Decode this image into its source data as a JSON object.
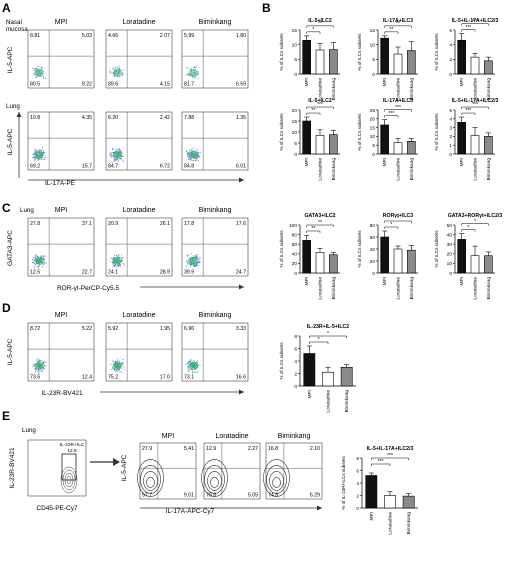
{
  "panels": {
    "A": {
      "letter": "A",
      "conditions": [
        "MPI",
        "Loratadine",
        "Biminkang"
      ],
      "tissues": [
        "Nasal\nmucosa",
        "Lung"
      ],
      "ylabel": "IL-5-APC",
      "xlabel": "IL-17A-PE",
      "quadrants": [
        [
          [
            "8.81",
            "5.03",
            "80.5",
            "9.22"
          ],
          [
            "4.66",
            "2.07",
            "89.6",
            "4.15"
          ],
          [
            "5.99",
            "1.80",
            "81.7",
            "6.59"
          ]
        ],
        [
          [
            "10.8",
            "4.35",
            "69.2",
            "15.7"
          ],
          [
            "6.20",
            "2.42",
            "84.7",
            "6.72"
          ],
          [
            "7.88",
            "1.35",
            "84.8",
            "6.01"
          ]
        ]
      ]
    },
    "B": {
      "letter": "B"
    },
    "C": {
      "letter": "C",
      "tissue": "Lung",
      "conditions": [
        "MPI",
        "Loratadine",
        "Biminkang"
      ],
      "ylabel": "GATA3-APC",
      "xlabel": "ROR-γt-PerCP-Cy5.5",
      "quadrants": [
        [
          "27.8",
          "37.1",
          "12.5",
          "22.7"
        ],
        [
          "20.9",
          "26.1",
          "24.1",
          "28.9"
        ],
        [
          "17.8",
          "17.6",
          "39.9",
          "24.7"
        ]
      ]
    },
    "D": {
      "letter": "D",
      "conditions": [
        "MPI",
        "Loratadine",
        "Biminkang"
      ],
      "ylabel": "IL-5-APC",
      "xlabel": "IL-23R-BV421",
      "quadrants": [
        [
          "8.72",
          "5.22",
          "73.6",
          "12.4"
        ],
        [
          "5.92",
          "1.95",
          "75.2",
          "17.0"
        ],
        [
          "6.96",
          "3.33",
          "73.1",
          "16.6"
        ]
      ]
    },
    "E": {
      "letter": "E",
      "tissue": "Lung",
      "gate_label": "IL-23R+ILC",
      "gate_value": "12.8",
      "gate_ylabel": "IL-23R-BV421",
      "gate_xlabel": "CD45-PE-Cy7",
      "conditions": [
        "MPI",
        "Loratadine",
        "Biminkang"
      ],
      "ylabel": "IL-5-APC",
      "xlabel": "IL-17A-APC-Cy7",
      "quadrants": [
        [
          "27.9",
          "5.41",
          "57.7",
          "9.01"
        ],
        [
          "12.9",
          "2.27",
          "79.8",
          "5.05"
        ],
        [
          "16.8",
          "2.10",
          "74.8",
          "6.29"
        ]
      ]
    }
  },
  "chart_data": [
    {
      "type": "bar",
      "panel": "B",
      "title": "IL-5+ILC2",
      "ylabel": "% of ILCs subsets",
      "categories": [
        "MPI",
        "Loratadine",
        "Biminkang"
      ],
      "values": [
        11.5,
        8.2,
        8.3
      ],
      "errors": [
        1.5,
        2.2,
        2.4
      ],
      "ylim": [
        0,
        15
      ],
      "ticks": [
        0,
        5,
        10,
        15
      ],
      "brackets": [
        {
          "from": 0,
          "to": 2,
          "label": "**"
        },
        {
          "from": 0,
          "to": 1,
          "label": "*"
        }
      ]
    },
    {
      "type": "bar",
      "panel": "B",
      "title": "IL-17A+ILC3",
      "ylabel": "% of ILCs subsets",
      "categories": [
        "MPI",
        "Loratadine",
        "Biminkang"
      ],
      "values": [
        12.2,
        6.8,
        8.0
      ],
      "errors": [
        0.8,
        2.4,
        3.0
      ],
      "ylim": [
        0,
        15
      ],
      "ticks": [
        0,
        5,
        10,
        15
      ],
      "brackets": [
        {
          "from": 0,
          "to": 2,
          "label": "**"
        },
        {
          "from": 0,
          "to": 1,
          "label": "**"
        }
      ]
    },
    {
      "type": "bar",
      "panel": "B",
      "title": "IL-5+IL-17A+ILC2/3",
      "ylabel": "% of ILCs subsets",
      "categories": [
        "MPI",
        "Loratadine",
        "Biminkang"
      ],
      "values": [
        4.6,
        2.3,
        1.8
      ],
      "errors": [
        0.9,
        0.5,
        0.5
      ],
      "ylim": [
        0,
        6
      ],
      "ticks": [
        0,
        2,
        4,
        6
      ],
      "brackets": [
        {
          "from": 0,
          "to": 2,
          "label": "***"
        },
        {
          "from": 0,
          "to": 1,
          "label": "***"
        }
      ]
    },
    {
      "type": "bar",
      "panel": "B",
      "title": "IL-5+ILC2",
      "ylabel": "% of ILCs subsets",
      "categories": [
        "MPI",
        "Loratadine",
        "Biminkang"
      ],
      "values": [
        15.0,
        8.5,
        8.8
      ],
      "errors": [
        1.8,
        2.5,
        2.0
      ],
      "ylim": [
        0,
        20
      ],
      "ticks": [
        0,
        5,
        10,
        15,
        20
      ],
      "brackets": [
        {
          "from": 0,
          "to": 2,
          "label": "***"
        },
        {
          "from": 0,
          "to": 1,
          "label": "**"
        }
      ]
    },
    {
      "type": "bar",
      "panel": "B",
      "title": "IL-17A+ILC3",
      "ylabel": "% of ILCs subsets",
      "categories": [
        "MPI",
        "Loratadine",
        "Biminkang"
      ],
      "values": [
        16.5,
        6.5,
        7.2
      ],
      "errors": [
        3.0,
        2.2,
        1.5
      ],
      "ylim": [
        0,
        25
      ],
      "ticks": [
        0,
        5,
        10,
        15,
        20,
        25
      ],
      "brackets": [
        {
          "from": 0,
          "to": 2,
          "label": "***"
        },
        {
          "from": 0,
          "to": 1,
          "label": "***"
        }
      ]
    },
    {
      "type": "bar",
      "panel": "B",
      "title": "IL-5+IL-17A+ILC2/3",
      "ylabel": "% of ILCs subsets",
      "categories": [
        "MPI",
        "Loratadine",
        "Biminkang"
      ],
      "values": [
        3.6,
        2.1,
        2.0
      ],
      "errors": [
        0.6,
        0.9,
        0.4
      ],
      "ylim": [
        0,
        5
      ],
      "ticks": [
        0,
        1,
        2,
        3,
        4,
        5
      ],
      "brackets": [
        {
          "from": 0,
          "to": 2,
          "label": "***"
        },
        {
          "from": 0,
          "to": 1,
          "label": "***"
        }
      ]
    },
    {
      "type": "bar",
      "panel": "C",
      "title": "GATA3+ILC2",
      "ylabel": "% of ILCs subsets",
      "categories": [
        "MPI",
        "Loratadine",
        "Biminkang"
      ],
      "values": [
        68,
        43,
        38
      ],
      "errors": [
        10,
        8,
        5
      ],
      "ylim": [
        0,
        100
      ],
      "ticks": [
        0,
        20,
        40,
        60,
        80,
        100
      ],
      "brackets": [
        {
          "from": 0,
          "to": 2,
          "label": "**"
        },
        {
          "from": 0,
          "to": 1,
          "label": "**"
        }
      ]
    },
    {
      "type": "bar",
      "panel": "C",
      "title": "RORγt+ILC3",
      "ylabel": "% of ILCs subsets",
      "categories": [
        "MPI",
        "Loratadine",
        "Biminkang"
      ],
      "values": [
        60,
        40,
        38
      ],
      "errors": [
        10,
        5,
        8
      ],
      "ylim": [
        0,
        80
      ],
      "ticks": [
        0,
        20,
        40,
        60,
        80
      ],
      "brackets": [
        {
          "from": 0,
          "to": 2,
          "label": "*"
        },
        {
          "from": 0,
          "to": 1,
          "label": "*"
        }
      ]
    },
    {
      "type": "bar",
      "panel": "C",
      "title": "GATA3+RORγt+ILC2/3",
      "ylabel": "% of ILCs subsets",
      "categories": [
        "MPI",
        "Loratadine",
        "Biminkang"
      ],
      "values": [
        35,
        18,
        18
      ],
      "errors": [
        6,
        10,
        4
      ],
      "ylim": [
        0,
        50
      ],
      "ticks": [
        0,
        10,
        20,
        30,
        40,
        50
      ],
      "brackets": [
        {
          "from": 0,
          "to": 2,
          "label": "*"
        },
        {
          "from": 0,
          "to": 1,
          "label": "*"
        }
      ]
    },
    {
      "type": "bar",
      "panel": "D",
      "title": "IL-23R+IL-5+ILC2",
      "ylabel": "% of ILCs subsets",
      "categories": [
        "MPI",
        "Loratadine",
        "Biminkang"
      ],
      "values": [
        5.2,
        2.2,
        3.0
      ],
      "errors": [
        1.2,
        0.8,
        0.4
      ],
      "ylim": [
        0,
        8
      ],
      "ticks": [
        0,
        2,
        4,
        6,
        8
      ],
      "brackets": [
        {
          "from": 0,
          "to": 2,
          "label": "*"
        },
        {
          "from": 0,
          "to": 1,
          "label": "*"
        }
      ]
    },
    {
      "type": "bar",
      "panel": "E",
      "title": "IL-5+IL-17A+ILC2/3",
      "ylabel": "% of IL-23R+ILCs subsets",
      "categories": [
        "MPI",
        "Loratadine",
        "Biminkang"
      ],
      "values": [
        5.2,
        2.0,
        1.9
      ],
      "errors": [
        0.4,
        0.6,
        0.4
      ],
      "ylim": [
        0,
        8
      ],
      "ticks": [
        0,
        2,
        4,
        6,
        8
      ],
      "brackets": [
        {
          "from": 0,
          "to": 2,
          "label": "***"
        },
        {
          "from": 0,
          "to": 1,
          "label": "***"
        }
      ]
    }
  ]
}
